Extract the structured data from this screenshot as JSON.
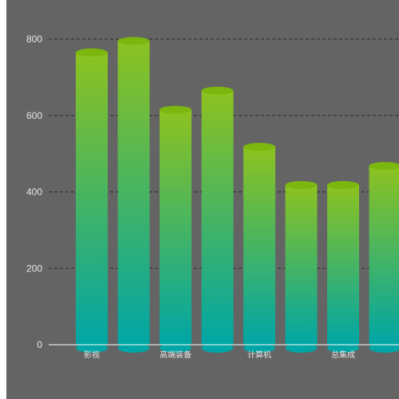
{
  "chart_data": {
    "type": "bar",
    "title": "",
    "xlabel": "",
    "ylabel": "",
    "ylim": [
      0,
      800
    ],
    "yticks": [
      0,
      200,
      400,
      600,
      800
    ],
    "grid": true,
    "categories": [
      "影视",
      "",
      "高端装备",
      "",
      "计算机",
      "",
      "总集成",
      ""
    ],
    "series": [
      {
        "values": [
          765,
          795,
          615,
          665,
          518,
          418,
          418,
          468
        ]
      }
    ],
    "colors": {
      "background": "#646464",
      "bar_top": "#8dc21f",
      "bar_bottom": "#00a6a6",
      "bar_cap": "#7cb70f",
      "axis_text": "#e6e6e6",
      "grid": "#2a2a2a",
      "axis_line": "#ffffff"
    }
  }
}
